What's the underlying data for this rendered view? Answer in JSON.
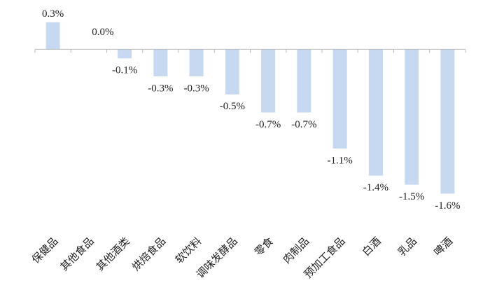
{
  "chart_data": {
    "type": "bar",
    "categories": [
      "保健品",
      "其他食品",
      "其他酒类",
      "烘焙食品",
      "软饮料",
      "调味发酵品",
      "零食",
      "肉制品",
      "预加工食品",
      "白酒",
      "乳品",
      "啤酒"
    ],
    "values": [
      0.3,
      0.0,
      -0.1,
      -0.3,
      -0.3,
      -0.5,
      -0.7,
      -0.7,
      -1.1,
      -1.4,
      -1.5,
      -1.6
    ],
    "value_labels": [
      "0.3%",
      "0.0%",
      "-0.1%",
      "-0.3%",
      "-0.3%",
      "-0.5%",
      "-0.7%",
      "-0.7%",
      "-1.1%",
      "-1.4%",
      "-1.5%",
      "-1.6%"
    ],
    "color": "#c6d9f1",
    "ylim": [
      -2.0,
      0.5
    ]
  }
}
